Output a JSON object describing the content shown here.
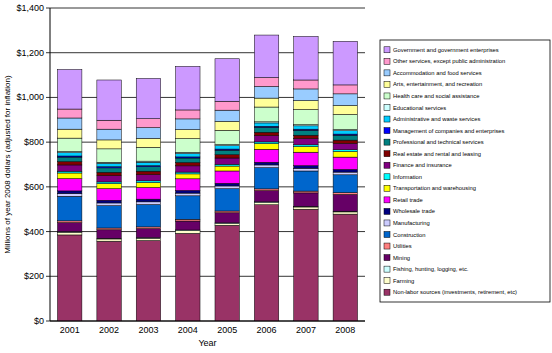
{
  "chart_data": {
    "type": "bar",
    "stacked": true,
    "grid": true,
    "legend": "right",
    "x_label": "Year",
    "y_label": "Millions of year 2008 dollars (adjusted for inflation)",
    "categories": [
      "2001",
      "2002",
      "2003",
      "2004",
      "2005",
      "2006",
      "2007",
      "2008"
    ],
    "ylim": [
      0,
      1400
    ],
    "yticks": [
      {
        "value": 0,
        "label": "$0"
      },
      {
        "value": 200,
        "label": "$200"
      },
      {
        "value": 400,
        "label": "$400"
      },
      {
        "value": 600,
        "label": "$600"
      },
      {
        "value": 800,
        "label": "$800"
      },
      {
        "value": 1000,
        "label": "$1,000"
      },
      {
        "value": 1200,
        "label": "$1,200"
      },
      {
        "value": 1400,
        "label": "$1,400"
      }
    ],
    "series": [
      {
        "name": "Non-labor sources (investments, retirement, etc)",
        "color": "#993366",
        "values": [
          385,
          357,
          360,
          392,
          428,
          520,
          500,
          478
        ]
      },
      {
        "name": "Farming",
        "color": "#ffffcc",
        "values": [
          12,
          10,
          10,
          12,
          8,
          10,
          10,
          10
        ]
      },
      {
        "name": "Fishing, hunting, logging, etc.",
        "color": "#ccffff",
        "values": [
          3,
          3,
          3,
          3,
          3,
          3,
          3,
          3
        ]
      },
      {
        "name": "Mining",
        "color": "#660066",
        "values": [
          40,
          38,
          40,
          40,
          45,
          50,
          60,
          75
        ]
      },
      {
        "name": "Utilities",
        "color": "#ff8080",
        "values": [
          8,
          8,
          8,
          8,
          8,
          8,
          8,
          8
        ]
      },
      {
        "name": "Construction",
        "color": "#0066cc",
        "values": [
          110,
          100,
          100,
          105,
          100,
          95,
          90,
          80
        ]
      },
      {
        "name": "Manufacturing",
        "color": "#ccccff",
        "values": [
          12,
          12,
          12,
          12,
          12,
          12,
          12,
          12
        ]
      },
      {
        "name": "Wholesale trade",
        "color": "#000080",
        "values": [
          12,
          12,
          12,
          12,
          12,
          12,
          12,
          12
        ]
      },
      {
        "name": "Retail trade",
        "color": "#ff00ff",
        "values": [
          55,
          52,
          52,
          52,
          55,
          58,
          60,
          55
        ]
      },
      {
        "name": "Transportation and warehousing",
        "color": "#ffff00",
        "values": [
          25,
          22,
          22,
          22,
          22,
          25,
          25,
          25
        ]
      },
      {
        "name": "Information",
        "color": "#00ffff",
        "values": [
          8,
          8,
          8,
          8,
          8,
          8,
          8,
          8
        ]
      },
      {
        "name": "Finance and insurance",
        "color": "#800080",
        "values": [
          28,
          28,
          28,
          28,
          28,
          28,
          28,
          28
        ]
      },
      {
        "name": "Real estate and rental and leasing",
        "color": "#800000",
        "values": [
          15,
          15,
          15,
          15,
          15,
          15,
          15,
          15
        ]
      },
      {
        "name": "Professional and technical services",
        "color": "#008080",
        "values": [
          20,
          20,
          20,
          20,
          20,
          22,
          22,
          22
        ]
      },
      {
        "name": "Management of companies and enterprises",
        "color": "#0000ff",
        "values": [
          5,
          5,
          5,
          5,
          5,
          5,
          5,
          5
        ]
      },
      {
        "name": "Administrative and waste services",
        "color": "#00ccff",
        "values": [
          15,
          15,
          15,
          15,
          15,
          15,
          15,
          15
        ]
      },
      {
        "name": "Educational services",
        "color": "#ccffff",
        "values": [
          5,
          5,
          5,
          5,
          5,
          5,
          5,
          5
        ]
      },
      {
        "name": "Health care and social assistance",
        "color": "#ccffcc",
        "values": [
          60,
          60,
          62,
          62,
          64,
          66,
          68,
          68
        ]
      },
      {
        "name": "Arts, entertainment, and recreation",
        "color": "#ffff99",
        "values": [
          40,
          40,
          40,
          40,
          40,
          40,
          40,
          40
        ]
      },
      {
        "name": "Accommodation and food services",
        "color": "#99ccff",
        "values": [
          50,
          48,
          48,
          48,
          50,
          52,
          52,
          52
        ]
      },
      {
        "name": "Other services, except public administration",
        "color": "#ff99cc",
        "values": [
          40,
          40,
          40,
          40,
          40,
          40,
          40,
          40
        ]
      },
      {
        "name": "Government and government enterprises",
        "color": "#cc99ff",
        "values": [
          177,
          180,
          180,
          195,
          190,
          190,
          195,
          195
        ]
      }
    ]
  }
}
